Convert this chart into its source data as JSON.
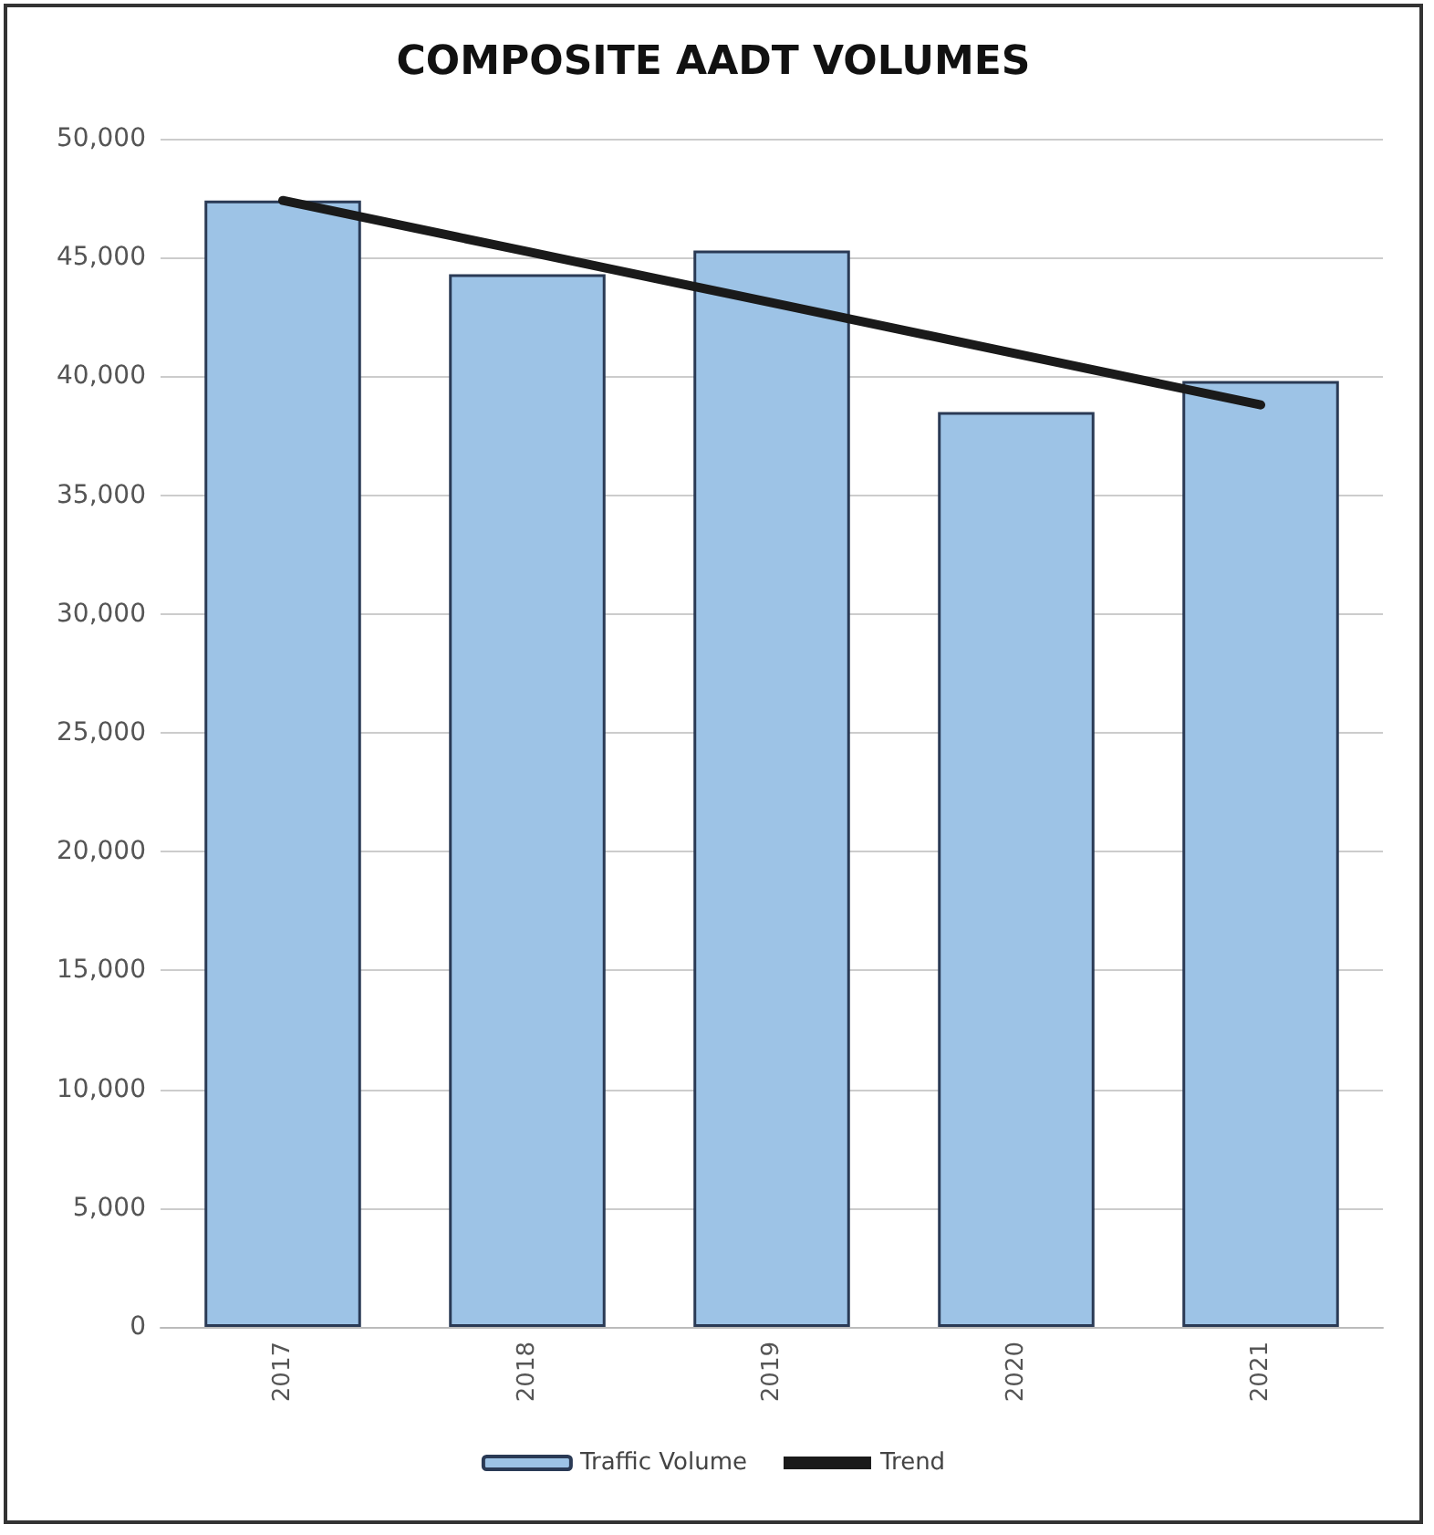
{
  "chart_data": {
    "type": "bar",
    "title": "COMPOSITE AADT VOLUMES",
    "categories": [
      "2017",
      "2018",
      "2019",
      "2020",
      "2021"
    ],
    "series": [
      {
        "name": "Traffic Volume",
        "color": "#9dc3e6",
        "values": [
          47400,
          44300,
          45300,
          38500,
          39800
        ]
      },
      {
        "name": "Trend",
        "type": "line",
        "color": "#1a1a1a",
        "values": [
          47400,
          45250,
          43100,
          40950,
          38800
        ]
      }
    ],
    "ylim": [
      0,
      50000
    ],
    "yticks": [
      0,
      {
        "value": 5000,
        "label": "5,000"
      },
      {
        "value": 10000,
        "label": "10,000"
      },
      {
        "value": 15000,
        "label": "15,000"
      },
      {
        "value": 20000,
        "label": "20,000"
      },
      {
        "value": 25000,
        "label": "25,000"
      },
      {
        "value": 30000,
        "label": "30,000"
      },
      {
        "value": 35000,
        "label": "35,000"
      },
      {
        "value": 40000,
        "label": "40,000"
      },
      {
        "value": 45000,
        "label": "45,000"
      },
      {
        "value": 50000,
        "label": "50,000"
      }
    ],
    "grid": "y",
    "legend": "bottom",
    "marker": "none"
  }
}
